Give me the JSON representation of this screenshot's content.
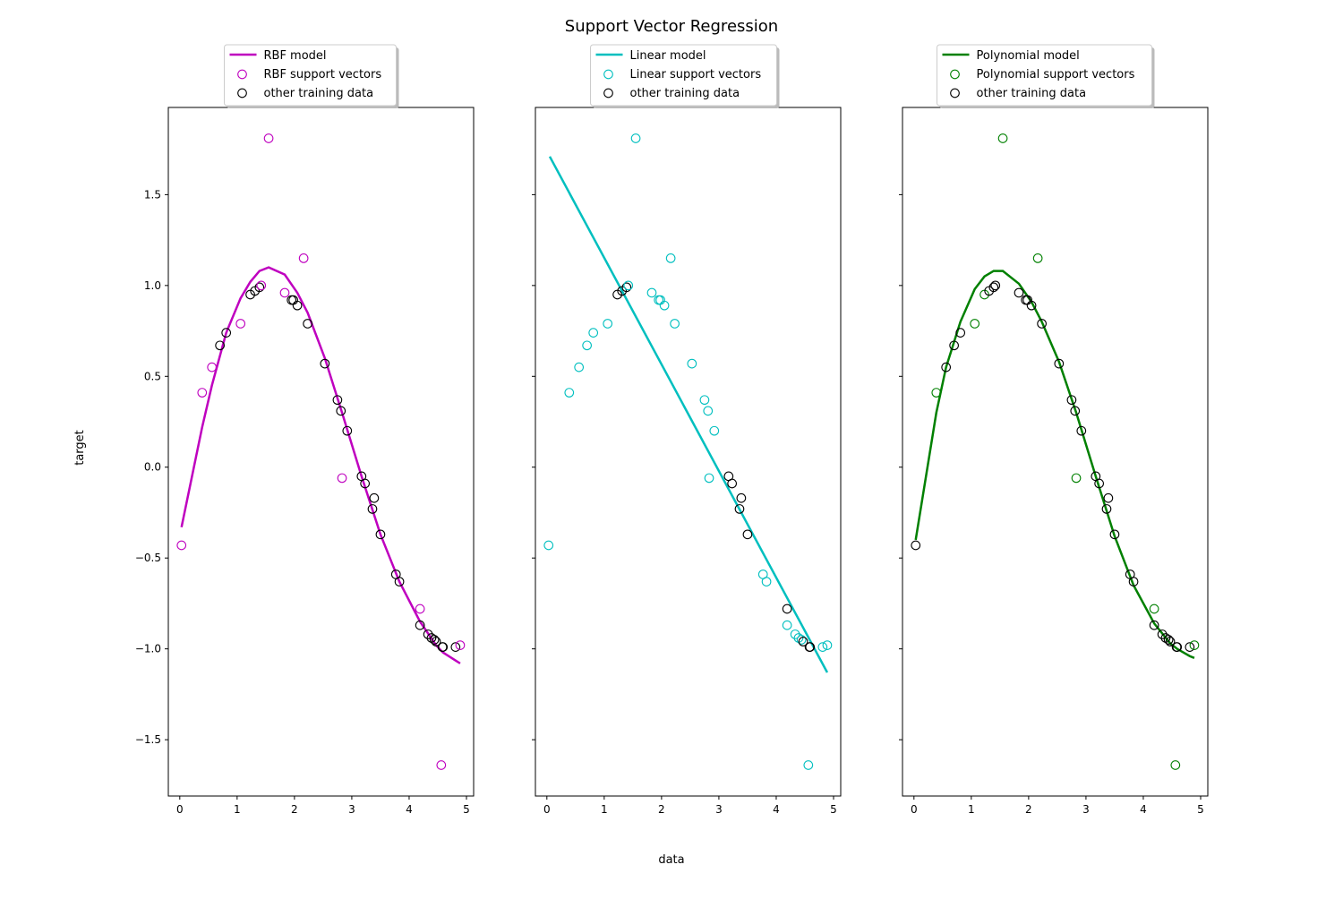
{
  "chart_data": {
    "type": "scatter",
    "title": "Support Vector Regression",
    "xlabel": "data",
    "ylabel": "target",
    "xlim": [
      -0.2,
      5.125
    ],
    "ylim": [
      -1.81,
      1.98
    ],
    "xticks": [
      "0",
      "1",
      "2",
      "3",
      "4",
      "5"
    ],
    "yticks": [
      "−1.5",
      "−1.0",
      "−0.5",
      "0.0",
      "0.5",
      "1.0",
      "1.5"
    ],
    "ytick_values": [
      -1.5,
      -1.0,
      -0.5,
      0.0,
      0.5,
      1.0,
      1.5
    ],
    "grid": false,
    "legend_position": "above each panel",
    "training_data": {
      "x": [
        0.03,
        0.39,
        0.56,
        0.7,
        0.81,
        1.06,
        1.23,
        1.31,
        1.39,
        1.42,
        1.55,
        1.83,
        1.95,
        1.98,
        2.05,
        2.16,
        2.23,
        2.53,
        2.75,
        2.81,
        2.83,
        2.92,
        3.17,
        3.23,
        3.39,
        3.36,
        3.5,
        3.77,
        3.83,
        4.19,
        4.19,
        4.33,
        4.39,
        4.44,
        4.47,
        4.56,
        4.58,
        4.59,
        4.81,
        4.89
      ],
      "y": [
        -0.43,
        0.41,
        0.55,
        0.67,
        0.74,
        0.79,
        0.95,
        0.97,
        0.99,
        1.0,
        1.81,
        0.96,
        0.92,
        0.92,
        0.89,
        1.15,
        0.79,
        0.57,
        0.37,
        0.31,
        -0.06,
        0.2,
        -0.05,
        -0.09,
        -0.17,
        -0.23,
        -0.37,
        -0.59,
        -0.63,
        -0.78,
        -0.87,
        -0.92,
        -0.94,
        -0.95,
        -0.96,
        -1.64,
        -0.99,
        -0.99,
        -0.99,
        -0.98
      ]
    },
    "panels": [
      {
        "model_label": "RBF model",
        "sv_label": "RBF support vectors",
        "other_label": "other training data",
        "color": "#bf00bf",
        "support_vector_indices": [
          0,
          1,
          2,
          5,
          9,
          10,
          11,
          15,
          20,
          29,
          35,
          39
        ],
        "curve": {
          "x": [
            0.03,
            0.39,
            0.56,
            0.81,
            1.06,
            1.23,
            1.39,
            1.55,
            1.83,
            2.05,
            2.23,
            2.53,
            2.83,
            3.17,
            3.5,
            3.83,
            4.19,
            4.47,
            4.59,
            4.89
          ],
          "y": [
            -0.33,
            0.22,
            0.45,
            0.74,
            0.93,
            1.02,
            1.08,
            1.1,
            1.06,
            0.96,
            0.85,
            0.6,
            0.3,
            -0.05,
            -0.37,
            -0.63,
            -0.85,
            -0.98,
            -1.02,
            -1.08
          ]
        },
        "show_yticklabels": true
      },
      {
        "model_label": "Linear model",
        "sv_label": "Linear support vectors",
        "other_label": "other training data",
        "color": "#00bfbf",
        "support_vector_indices": [
          0,
          1,
          2,
          3,
          4,
          5,
          9,
          10,
          11,
          12,
          13,
          14,
          15,
          16,
          17,
          18,
          19,
          20,
          21,
          27,
          28,
          30,
          31,
          32,
          33,
          35,
          38,
          39
        ],
        "curve": {
          "x": [
            0.05,
            4.89
          ],
          "y": [
            1.71,
            -1.13
          ]
        },
        "show_yticklabels": false
      },
      {
        "model_label": "Polynomial model",
        "sv_label": "Polynomial support vectors",
        "other_label": "other training data",
        "color": "#008000",
        "support_vector_indices": [
          1,
          5,
          6,
          10,
          15,
          20,
          29,
          35,
          39
        ],
        "curve": {
          "x": [
            0.03,
            0.39,
            0.56,
            0.81,
            1.06,
            1.23,
            1.39,
            1.55,
            1.83,
            2.05,
            2.23,
            2.53,
            2.83,
            3.17,
            3.5,
            3.83,
            4.19,
            4.47,
            4.59,
            4.81,
            4.89
          ],
          "y": [
            -0.4,
            0.3,
            0.55,
            0.8,
            0.98,
            1.05,
            1.08,
            1.08,
            1.01,
            0.91,
            0.8,
            0.58,
            0.3,
            -0.05,
            -0.38,
            -0.65,
            -0.86,
            -0.97,
            -1.0,
            -1.04,
            -1.05
          ]
        },
        "show_yticklabels": false
      }
    ]
  }
}
